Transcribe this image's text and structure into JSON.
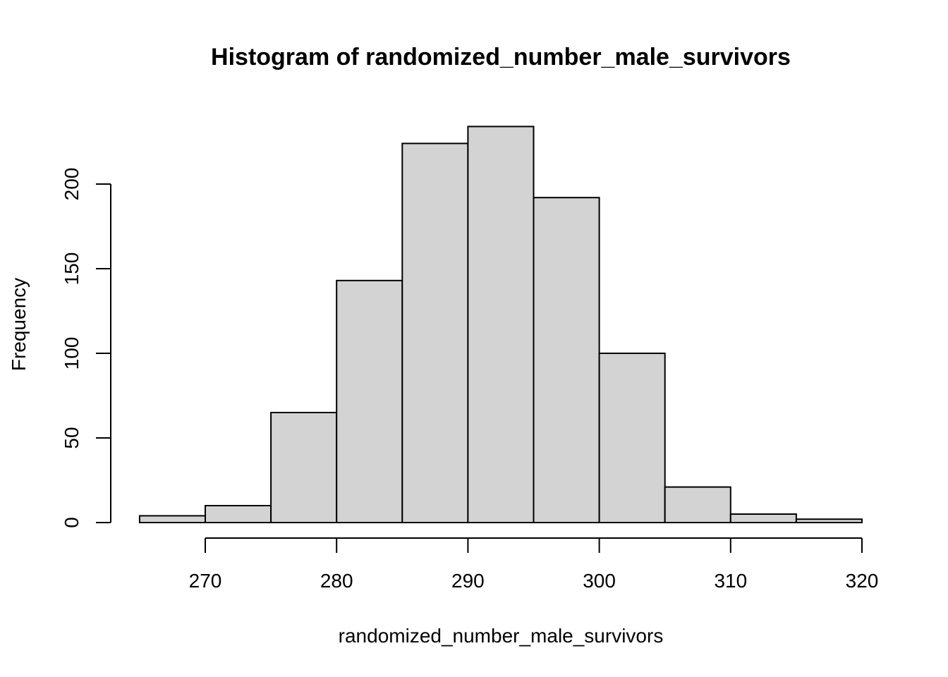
{
  "chart_data": {
    "type": "bar",
    "title": "Histogram of randomized_number_male_survivors",
    "xlabel": "randomized_number_male_survivors",
    "ylabel": "Frequency",
    "bins": [
      {
        "from": 265,
        "to": 270,
        "count": 4
      },
      {
        "from": 270,
        "to": 275,
        "count": 10
      },
      {
        "from": 275,
        "to": 280,
        "count": 65
      },
      {
        "from": 280,
        "to": 285,
        "count": 143
      },
      {
        "from": 285,
        "to": 290,
        "count": 224
      },
      {
        "from": 290,
        "to": 295,
        "count": 234
      },
      {
        "from": 295,
        "to": 300,
        "count": 192
      },
      {
        "from": 300,
        "to": 305,
        "count": 100
      },
      {
        "from": 305,
        "to": 310,
        "count": 21
      },
      {
        "from": 310,
        "to": 315,
        "count": 5
      },
      {
        "from": 315,
        "to": 320,
        "count": 2
      }
    ],
    "xlim": [
      265,
      320
    ],
    "ylim": [
      0,
      234
    ],
    "x_ticks": [
      270,
      280,
      290,
      300,
      310,
      320
    ],
    "y_ticks": [
      0,
      50,
      100,
      150,
      200
    ],
    "grid": false,
    "colors": {
      "bar_fill": "#d3d3d3",
      "bar_stroke": "#000000",
      "background": "#ffffff"
    }
  }
}
